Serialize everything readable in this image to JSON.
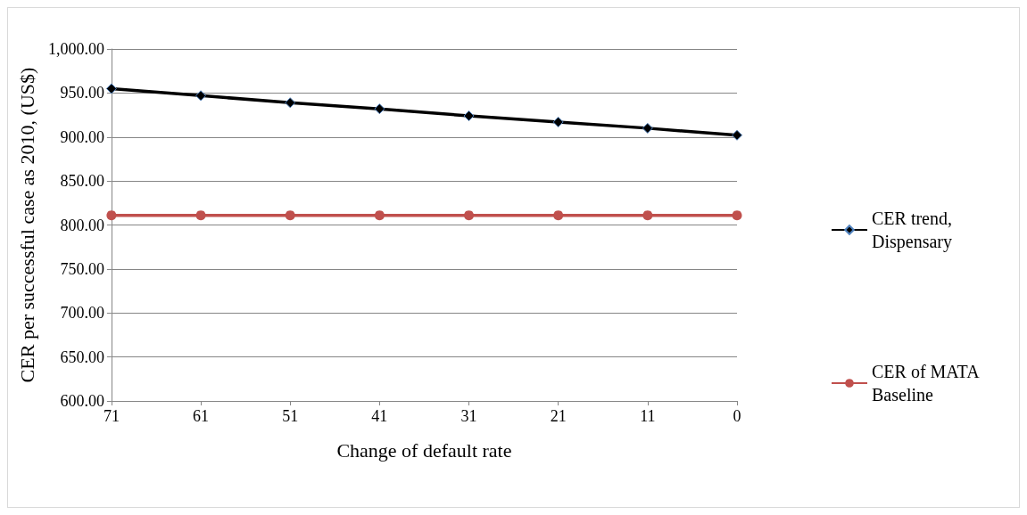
{
  "chart_data": {
    "type": "line",
    "xlabel": "Change of default rate",
    "ylabel": "CER per successful case as 2010, (US$)",
    "categories": [
      "71",
      "61",
      "51",
      "41",
      "31",
      "21",
      "11",
      "0"
    ],
    "series": [
      {
        "name": "CER trend, Dispensary",
        "color": "#000000",
        "marker": "diamond",
        "values": [
          955,
          947,
          939,
          932,
          924,
          917,
          910,
          902
        ]
      },
      {
        "name": "CER of MATA Baseline",
        "color": "#c0504d",
        "marker": "circle",
        "values": [
          811,
          811,
          811,
          811,
          811,
          811,
          811,
          811
        ]
      }
    ],
    "ylim": [
      600,
      1000
    ],
    "yticks": [
      {
        "value": 600,
        "label": "600.00"
      },
      {
        "value": 650,
        "label": "650.00"
      },
      {
        "value": 700,
        "label": "700.00"
      },
      {
        "value": 750,
        "label": "750.00"
      },
      {
        "value": 800,
        "label": "800.00"
      },
      {
        "value": 850,
        "label": "850.00"
      },
      {
        "value": 900,
        "label": "900.00"
      },
      {
        "value": 950,
        "label": "950.00"
      },
      {
        "value": 1000,
        "label": "1,000.00"
      }
    ],
    "grid": "y",
    "legend": "right",
    "line_style": "solid"
  }
}
